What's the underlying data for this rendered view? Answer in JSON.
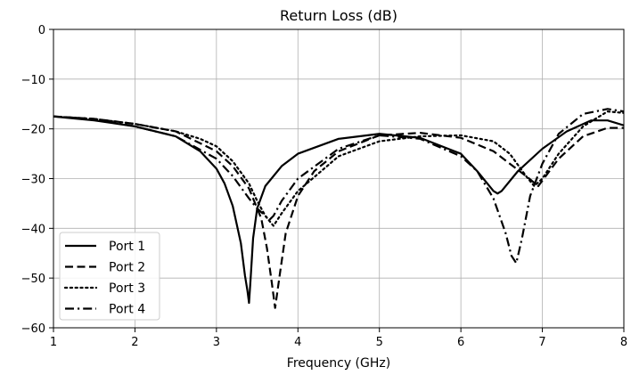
{
  "chart_data": {
    "type": "line",
    "title": "Return Loss (dB)",
    "xlabel": "Frequency (GHz)",
    "ylabel": "",
    "xlim": [
      1,
      8
    ],
    "ylim": [
      -60,
      0
    ],
    "xticks": [
      1,
      2,
      3,
      4,
      5,
      6,
      7,
      8
    ],
    "xtick_labels": [
      "1",
      "2",
      "3",
      "4",
      "5",
      "6",
      "7",
      "8"
    ],
    "yticks": [
      0,
      -10,
      -20,
      -30,
      -40,
      -50,
      -60
    ],
    "ytick_labels": [
      "0",
      "−10",
      "−20",
      "−30",
      "−40",
      "−50",
      "−60"
    ],
    "grid": true,
    "legend_position": "bottom-left",
    "line_color": "#000000",
    "series": [
      {
        "name": "Port 1",
        "style": "solid",
        "x": [
          1.0,
          1.5,
          2.0,
          2.5,
          2.8,
          3.0,
          3.1,
          3.2,
          3.3,
          3.35,
          3.38,
          3.4,
          3.42,
          3.45,
          3.5,
          3.6,
          3.8,
          4.0,
          4.5,
          5.0,
          5.5,
          6.0,
          6.2,
          6.4,
          6.45,
          6.5,
          6.7,
          7.0,
          7.3,
          7.6,
          7.8,
          8.0
        ],
        "y": [
          -17.5,
          -18.3,
          -19.5,
          -21.5,
          -24.5,
          -28.0,
          -31.0,
          -35.5,
          -43.0,
          -49.5,
          -52.5,
          -55.0,
          -50.0,
          -42.0,
          -36.0,
          -31.5,
          -27.5,
          -25.0,
          -22.0,
          -21.0,
          -21.8,
          -25.0,
          -28.5,
          -32.5,
          -33.0,
          -32.5,
          -28.5,
          -24.0,
          -20.5,
          -18.3,
          -18.3,
          -19.3
        ]
      },
      {
        "name": "Port 2",
        "style": "dashed",
        "x": [
          1.0,
          1.5,
          2.0,
          2.5,
          3.0,
          3.2,
          3.4,
          3.55,
          3.62,
          3.68,
          3.72,
          3.78,
          3.85,
          4.0,
          4.2,
          4.5,
          5.0,
          5.5,
          6.0,
          6.4,
          6.8,
          6.95,
          7.2,
          7.5,
          7.8,
          8.0
        ],
        "y": [
          -17.5,
          -18.0,
          -19.0,
          -20.5,
          -24.5,
          -27.5,
          -32.0,
          -38.0,
          -44.0,
          -51.0,
          -56.0,
          -49.0,
          -41.0,
          -33.5,
          -28.5,
          -24.5,
          -21.3,
          -20.8,
          -21.8,
          -24.5,
          -29.5,
          -31.5,
          -26.0,
          -21.5,
          -19.8,
          -19.8
        ]
      },
      {
        "name": "Port 3",
        "style": "dotted",
        "x": [
          1.0,
          1.5,
          2.0,
          2.5,
          2.8,
          3.0,
          3.2,
          3.4,
          3.5,
          3.6,
          3.7,
          3.8,
          4.0,
          4.5,
          5.0,
          5.5,
          6.0,
          6.4,
          6.6,
          6.8,
          6.9,
          7.0,
          7.2,
          7.5,
          7.8,
          8.0
        ],
        "y": [
          -17.5,
          -18.0,
          -19.0,
          -20.5,
          -22.0,
          -23.5,
          -26.5,
          -31.0,
          -34.5,
          -37.5,
          -39.5,
          -37.0,
          -32.5,
          -25.5,
          -22.5,
          -21.5,
          -21.3,
          -22.5,
          -25.0,
          -29.5,
          -31.5,
          -30.0,
          -25.0,
          -19.5,
          -16.5,
          -16.8
        ]
      },
      {
        "name": "Port 4",
        "style": "dashdot",
        "x": [
          1.0,
          1.5,
          2.0,
          2.5,
          3.0,
          3.2,
          3.4,
          3.5,
          3.6,
          3.65,
          3.7,
          3.8,
          4.0,
          4.5,
          5.0,
          5.5,
          6.0,
          6.2,
          6.4,
          6.55,
          6.62,
          6.68,
          6.75,
          6.85,
          7.0,
          7.2,
          7.5,
          7.8,
          8.0
        ],
        "y": [
          -17.5,
          -18.0,
          -19.5,
          -21.5,
          -26.0,
          -29.5,
          -34.0,
          -36.0,
          -37.5,
          -38.3,
          -37.5,
          -34.5,
          -30.0,
          -24.0,
          -21.3,
          -22.0,
          -25.5,
          -28.5,
          -34.0,
          -41.0,
          -45.5,
          -47.0,
          -42.0,
          -33.5,
          -27.0,
          -21.0,
          -17.0,
          -16.0,
          -16.5
        ]
      }
    ]
  }
}
